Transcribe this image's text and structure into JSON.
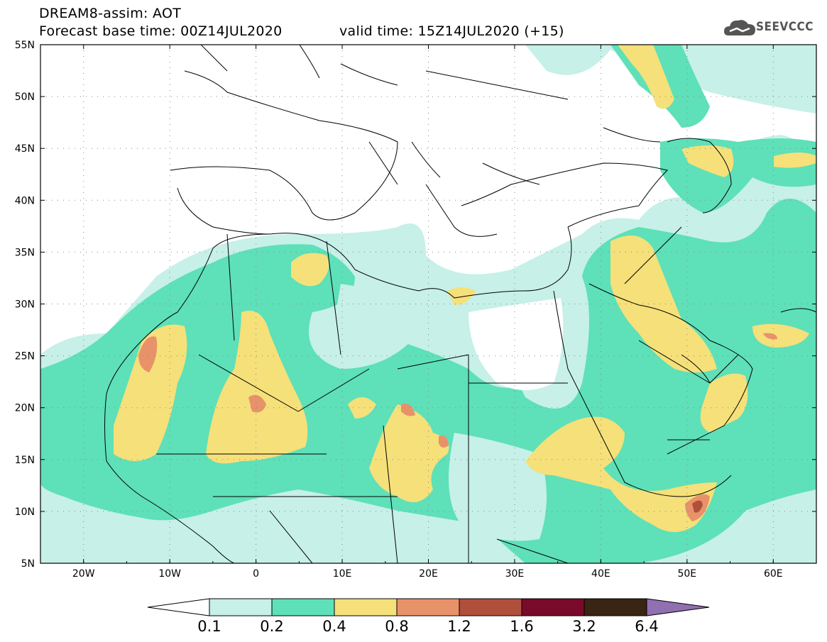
{
  "header": {
    "line1": "DREAM8-assim: AOT",
    "line2": "Forecast base time: 00Z14JUL2020",
    "line3": "valid time: 15Z14JUL2020 (+15)"
  },
  "logo": {
    "text": "SEEVCCC",
    "icon": "cloud-icon"
  },
  "map": {
    "lat_labels": [
      "55N",
      "50N",
      "45N",
      "40N",
      "35N",
      "30N",
      "25N",
      "20N",
      "15N",
      "10N",
      "5N"
    ],
    "lon_labels": [
      "20W",
      "10W",
      "0",
      "10E",
      "20E",
      "30E",
      "40E",
      "50E",
      "60E"
    ],
    "lon_range": [
      -25,
      65
    ],
    "lat_range": [
      5,
      55
    ],
    "field": "AOT",
    "gridlines": "dotted"
  },
  "colorbar": {
    "labels": [
      "0.1",
      "0.2",
      "0.4",
      "0.8",
      "1.2",
      "1.6",
      "3.2",
      "6.4"
    ],
    "colors": [
      "#c6f0e8",
      "#5ee0b8",
      "#f5e07a",
      "#e8926a",
      "#b0503c",
      "#7a0a2a",
      "#3a2414",
      "#9070b0"
    ],
    "under_color": "#ffffff",
    "over_color": "#9070b0"
  }
}
